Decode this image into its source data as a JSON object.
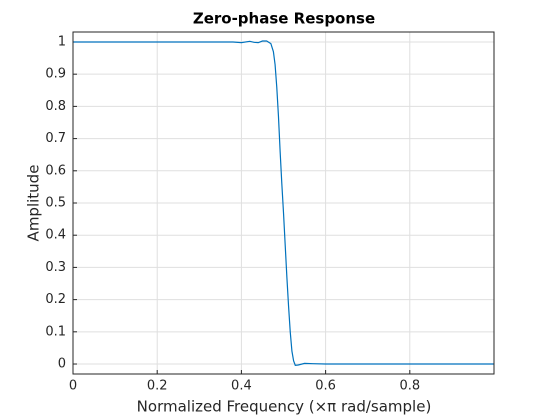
{
  "chart_data": {
    "type": "line",
    "title": "Zero-phase Response",
    "xlabel": "Normalized Frequency (×π rad/sample)",
    "ylabel": "Amplitude",
    "xlim": [
      0,
      1
    ],
    "ylim": [
      -0.031,
      1.031
    ],
    "xticks": [
      0,
      0.2,
      0.4,
      0.6,
      0.8
    ],
    "yticks": [
      0,
      0.1,
      0.2,
      0.3,
      0.4,
      0.5,
      0.6,
      0.7,
      0.8,
      0.9,
      1
    ],
    "grid": true,
    "series": [
      {
        "name": "Zero-phase",
        "color": "#0072bd",
        "x": [
          0,
          0.1,
          0.2,
          0.3,
          0.38,
          0.4,
          0.42,
          0.43,
          0.44,
          0.45,
          0.46,
          0.47,
          0.476,
          0.48,
          0.484,
          0.488,
          0.492,
          0.496,
          0.5,
          0.504,
          0.508,
          0.512,
          0.516,
          0.52,
          0.524,
          0.528,
          0.535,
          0.55,
          0.57,
          0.6,
          0.7,
          0.8,
          0.9,
          1
        ],
        "values": [
          1,
          1,
          1,
          1,
          1,
          0.998,
          1.002,
          0.999,
          0.998,
          1.003,
          1.003,
          0.995,
          0.97,
          0.93,
          0.86,
          0.77,
          0.66,
          0.56,
          0.47,
          0.37,
          0.27,
          0.18,
          0.1,
          0.04,
          0.01,
          -0.004,
          -0.003,
          0.002,
          0.001,
          0,
          0,
          0,
          0,
          0
        ]
      }
    ]
  }
}
